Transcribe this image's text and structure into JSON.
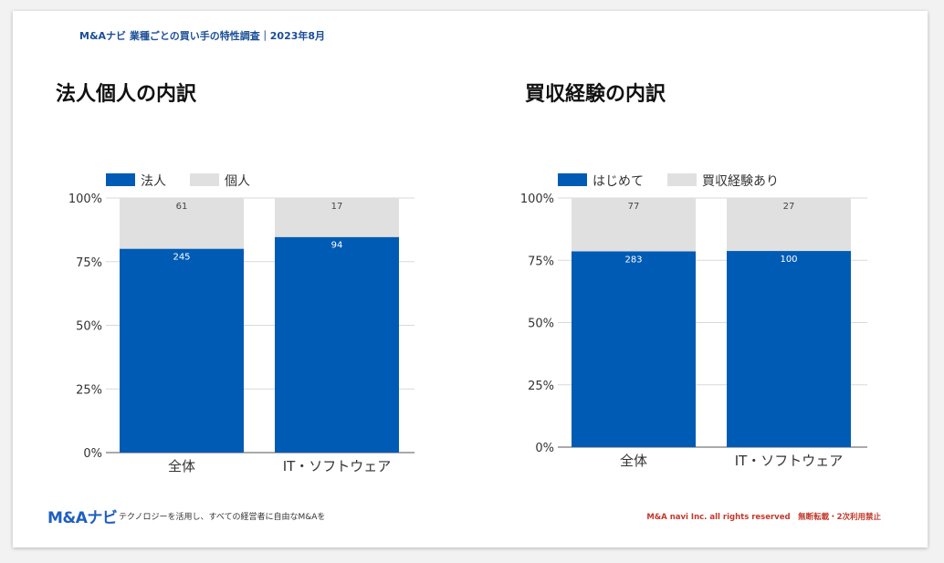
{
  "header": {
    "text": "M&Aナビ 業種ごとの買い手の特性調査｜2023年8月"
  },
  "footer": {
    "logo_text": "M&Aナビ",
    "tagline": "テクノロジーを活用し、すべての経営者に自由なM&Aを",
    "copyright": "M&A navi Inc. all rights reserved　無断転載・2次利用禁止"
  },
  "colors": {
    "primary": "#005bb5",
    "secondary": "#e0e0e0",
    "header": "#1b4e96",
    "copyright": "#c0392b"
  },
  "chart_data": [
    {
      "type": "bar",
      "stacked": "percent",
      "title": "法人個人の内訳",
      "categories": [
        "全体",
        "IT・ソフトウェア"
      ],
      "series": [
        {
          "name": "法人",
          "values": [
            245,
            94
          ]
        },
        {
          "name": "個人",
          "values": [
            61,
            17
          ]
        }
      ],
      "yticks": [
        "0%",
        "25%",
        "50%",
        "75%",
        "100%"
      ],
      "ylim": [
        0,
        100
      ],
      "legend": "top-left"
    },
    {
      "type": "bar",
      "stacked": "percent",
      "title": "買収経験の内訳",
      "categories": [
        "全体",
        "IT・ソフトウェア"
      ],
      "series": [
        {
          "name": "はじめて",
          "values": [
            283,
            100
          ]
        },
        {
          "name": "買収経験あり",
          "values": [
            77,
            27
          ]
        }
      ],
      "yticks": [
        "0%",
        "25%",
        "50%",
        "75%",
        "100%"
      ],
      "ylim": [
        0,
        100
      ],
      "legend": "top-left"
    }
  ]
}
